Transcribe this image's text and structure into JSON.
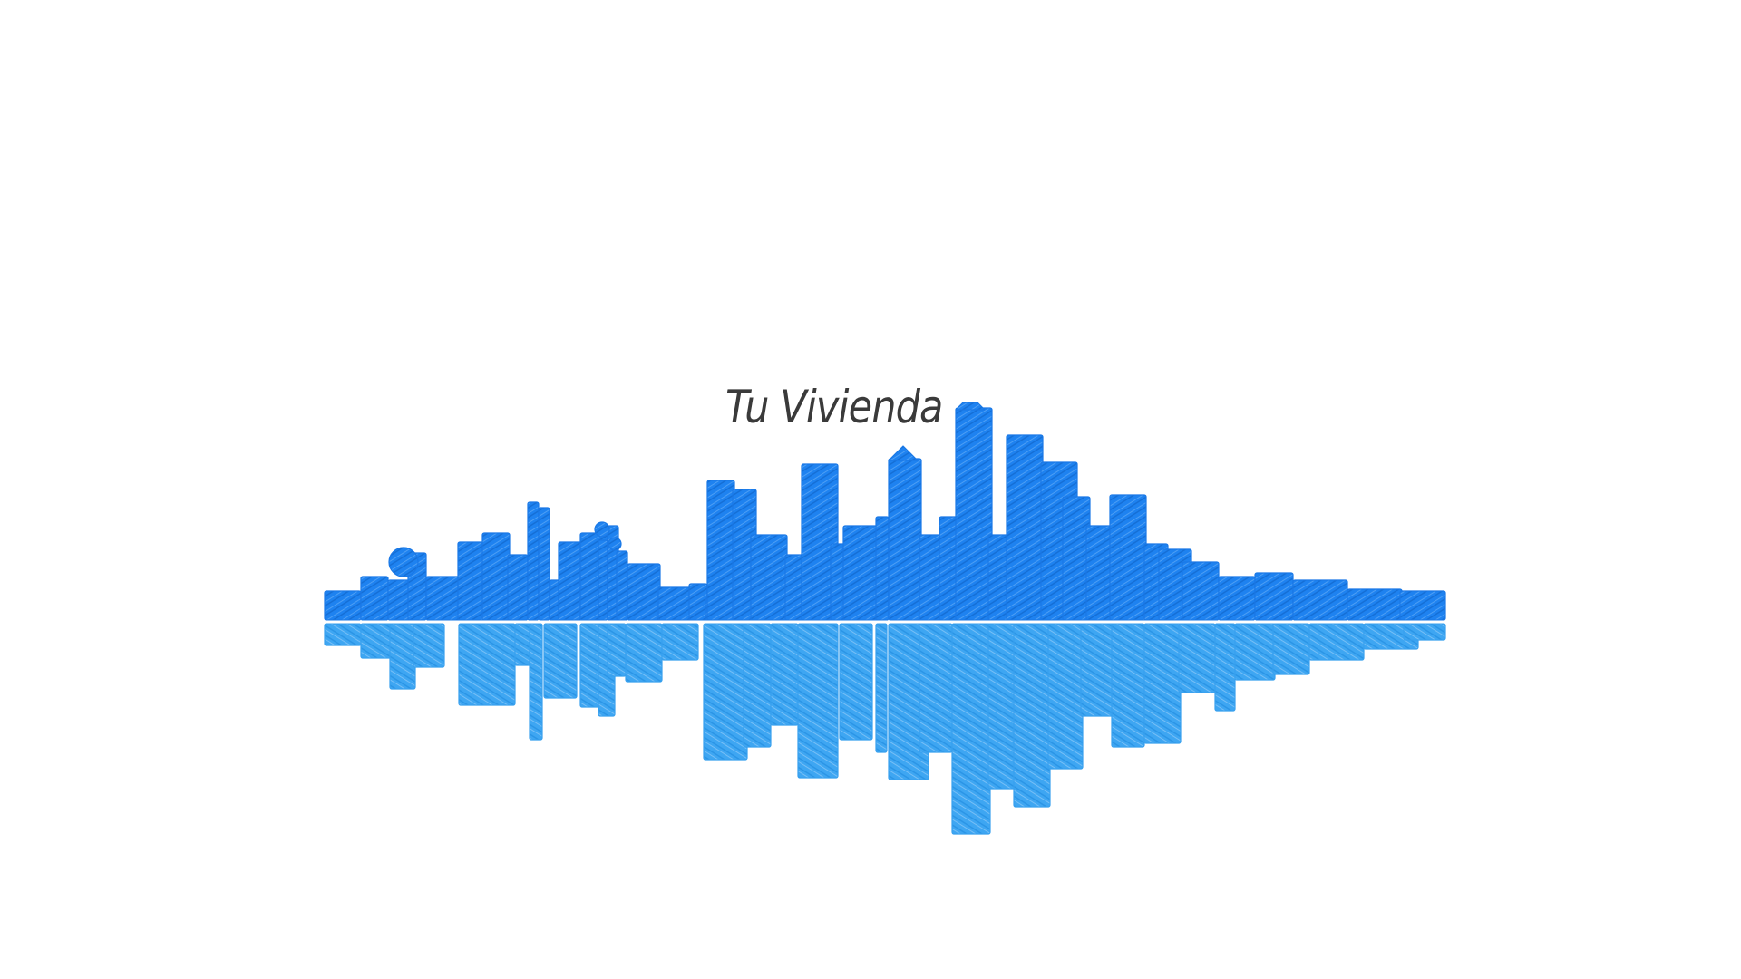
{
  "brand": {
    "title": "Tu Vivienda"
  },
  "colors": {
    "background": "#ffffff",
    "skyline": "#1e82f0",
    "skyline_dark": "#156fd6",
    "reflection": "#3ea6f2",
    "reflection_dark": "#2b95e6",
    "text": "#3a3a3a"
  }
}
